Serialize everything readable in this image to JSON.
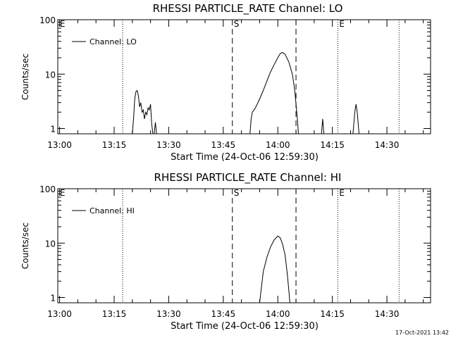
{
  "chart_data": [
    {
      "type": "line",
      "title": "RHESSI PARTICLE_RATE Channel: LO",
      "xlabel": "Start Time (24-Oct-06 12:59:30)",
      "ylabel": "Counts/sec",
      "xlim": [
        "12:59:30",
        "14:42:00"
      ],
      "ylim": [
        0.8,
        100
      ],
      "yscale": "log",
      "x_ticks": [
        "13:00",
        "13:15",
        "13:30",
        "13:45",
        "14:00",
        "14:15",
        "14:30"
      ],
      "y_ticks": [
        "1",
        "10",
        "100"
      ],
      "legend": {
        "placement": "top-left",
        "entries": [
          "Channel: LO"
        ]
      },
      "markers": [
        {
          "label": "E",
          "time": "12:59:40",
          "style": "none"
        },
        {
          "label": "",
          "time": "13:17:20",
          "style": "dotted"
        },
        {
          "label": "S",
          "time": "13:47:30",
          "style": "dashed"
        },
        {
          "label": "",
          "time": "14:05:00",
          "style": "dashed"
        },
        {
          "label": "E",
          "time": "14:16:30",
          "style": "dotted"
        },
        {
          "label": "",
          "time": "14:33:20",
          "style": "dotted"
        }
      ],
      "series": [
        {
          "name": "Channel: LO",
          "segments": [
            [
              [
                "13:20:00",
                0.8
              ],
              [
                "13:20:20",
                1.5
              ],
              [
                "13:20:40",
                3.5
              ],
              [
                "13:21:00",
                4.8
              ],
              [
                "13:21:20",
                5.0
              ],
              [
                "13:21:40",
                4.0
              ],
              [
                "13:22:00",
                2.5
              ],
              [
                "13:22:20",
                3.0
              ],
              [
                "13:22:40",
                2.0
              ],
              [
                "13:23:00",
                2.2
              ],
              [
                "13:23:20",
                1.5
              ],
              [
                "13:23:40",
                2.0
              ],
              [
                "13:24:00",
                1.8
              ],
              [
                "13:24:20",
                2.4
              ],
              [
                "13:24:40",
                2.2
              ],
              [
                "13:25:00",
                2.8
              ],
              [
                "13:25:20",
                1.2
              ],
              [
                "13:25:40",
                0.8
              ]
            ],
            [
              [
                "13:26:00",
                0.8
              ],
              [
                "13:26:20",
                1.3
              ],
              [
                "13:26:40",
                0.8
              ]
            ],
            [
              [
                "13:52:20",
                0.8
              ],
              [
                "13:52:40",
                1.5
              ],
              [
                "13:53:00",
                2.0
              ],
              [
                "13:53:40",
                2.3
              ],
              [
                "13:54:20",
                2.8
              ],
              [
                "13:55:00",
                3.5
              ],
              [
                "13:56:00",
                5.0
              ],
              [
                "13:57:00",
                7.5
              ],
              [
                "13:58:00",
                11.0
              ],
              [
                "13:59:00",
                15.0
              ],
              [
                "14:00:00",
                20.0
              ],
              [
                "14:00:40",
                24.0
              ],
              [
                "14:01:20",
                25.0
              ],
              [
                "14:02:00",
                23.0
              ],
              [
                "14:03:00",
                17.0
              ],
              [
                "14:04:00",
                10.0
              ],
              [
                "14:04:40",
                5.0
              ],
              [
                "14:05:20",
                1.6
              ],
              [
                "14:05:40",
                0.8
              ]
            ],
            [
              [
                "14:12:00",
                0.8
              ],
              [
                "14:12:20",
                1.5
              ],
              [
                "14:12:40",
                0.8
              ]
            ],
            [
              [
                "14:20:40",
                0.8
              ],
              [
                "14:21:10",
                2.0
              ],
              [
                "14:21:30",
                2.8
              ],
              [
                "14:21:50",
                2.0
              ],
              [
                "14:22:20",
                0.8
              ]
            ]
          ]
        }
      ]
    },
    {
      "type": "line",
      "title": "RHESSI PARTICLE_RATE Channel: HI",
      "xlabel": "Start Time (24-Oct-06 12:59:30)",
      "ylabel": "Counts/sec",
      "xlim": [
        "12:59:30",
        "14:42:00"
      ],
      "ylim": [
        0.8,
        100
      ],
      "yscale": "log",
      "x_ticks": [
        "13:00",
        "13:15",
        "13:30",
        "13:45",
        "14:00",
        "14:15",
        "14:30"
      ],
      "y_ticks": [
        "1",
        "10",
        "100"
      ],
      "legend": {
        "placement": "top-left",
        "entries": [
          "Channel: HI"
        ]
      },
      "markers": [
        {
          "label": "E",
          "time": "12:59:40",
          "style": "none"
        },
        {
          "label": "",
          "time": "13:17:20",
          "style": "dotted"
        },
        {
          "label": "S",
          "time": "13:47:30",
          "style": "dashed"
        },
        {
          "label": "",
          "time": "14:05:00",
          "style": "dashed"
        },
        {
          "label": "E",
          "time": "14:16:30",
          "style": "dotted"
        },
        {
          "label": "",
          "time": "14:33:20",
          "style": "dotted"
        }
      ],
      "series": [
        {
          "name": "Channel: HI",
          "segments": [
            [
              [
                "13:55:00",
                0.8
              ],
              [
                "13:56:00",
                3.0
              ],
              [
                "13:57:00",
                5.5
              ],
              [
                "13:58:00",
                8.5
              ],
              [
                "13:59:00",
                11.5
              ],
              [
                "14:00:00",
                13.5
              ],
              [
                "14:00:40",
                12.5
              ],
              [
                "14:01:20",
                9.5
              ],
              [
                "14:02:00",
                6.0
              ],
              [
                "14:02:40",
                2.5
              ],
              [
                "14:03:20",
                0.8
              ]
            ]
          ]
        }
      ]
    }
  ],
  "timestamp": "17-Oct-2021 13:42",
  "colors": {
    "background": "#ffffff",
    "foreground": "#000000"
  }
}
